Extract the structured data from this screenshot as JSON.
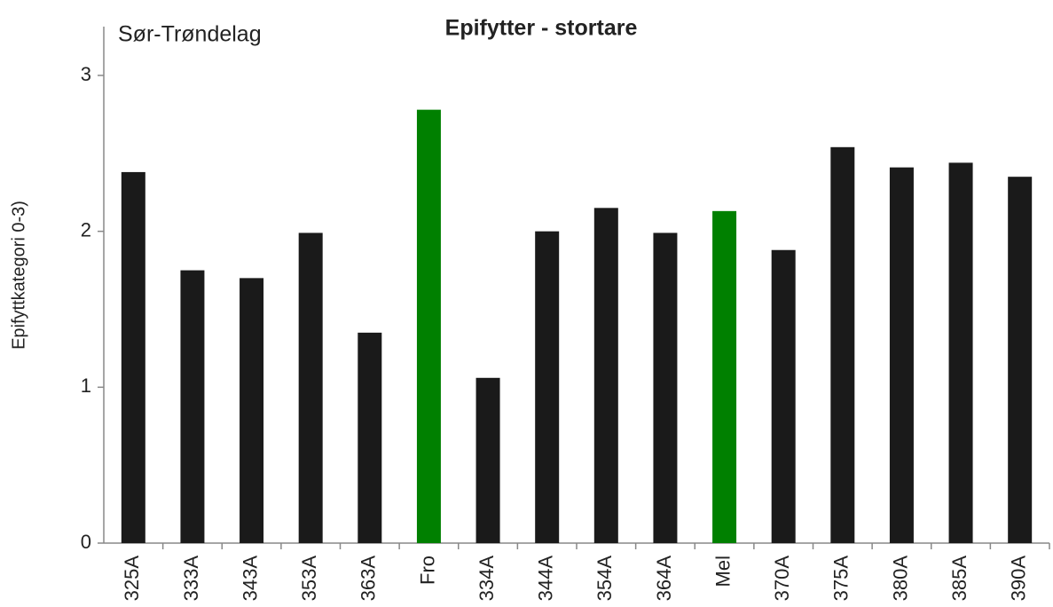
{
  "chart_data": {
    "type": "bar",
    "title": "Epifytter - stortare",
    "annotation": "Sør-Trøndelag",
    "y_label": "Epifyttkategori  0-3)",
    "categories": [
      "325A",
      "333A",
      "343A",
      "353A",
      "363A",
      "Fro",
      "334A",
      "344A",
      "354A",
      "364A",
      "Mel",
      "370A",
      "375A",
      "380A",
      "385A",
      "390A"
    ],
    "values": [
      2.38,
      1.75,
      1.7,
      1.99,
      1.35,
      2.78,
      1.06,
      2.0,
      2.15,
      1.99,
      2.13,
      1.88,
      2.54,
      2.41,
      2.44,
      2.35
    ],
    "colors": [
      "#1a1a1a",
      "#1a1a1a",
      "#1a1a1a",
      "#1a1a1a",
      "#1a1a1a",
      "#008000",
      "#1a1a1a",
      "#1a1a1a",
      "#1a1a1a",
      "#1a1a1a",
      "#008000",
      "#1a1a1a",
      "#1a1a1a",
      "#1a1a1a",
      "#1a1a1a",
      "#1a1a1a"
    ],
    "ylim": [
      0,
      3
    ],
    "yticks": [
      0,
      1,
      2,
      3
    ],
    "grid": false
  }
}
